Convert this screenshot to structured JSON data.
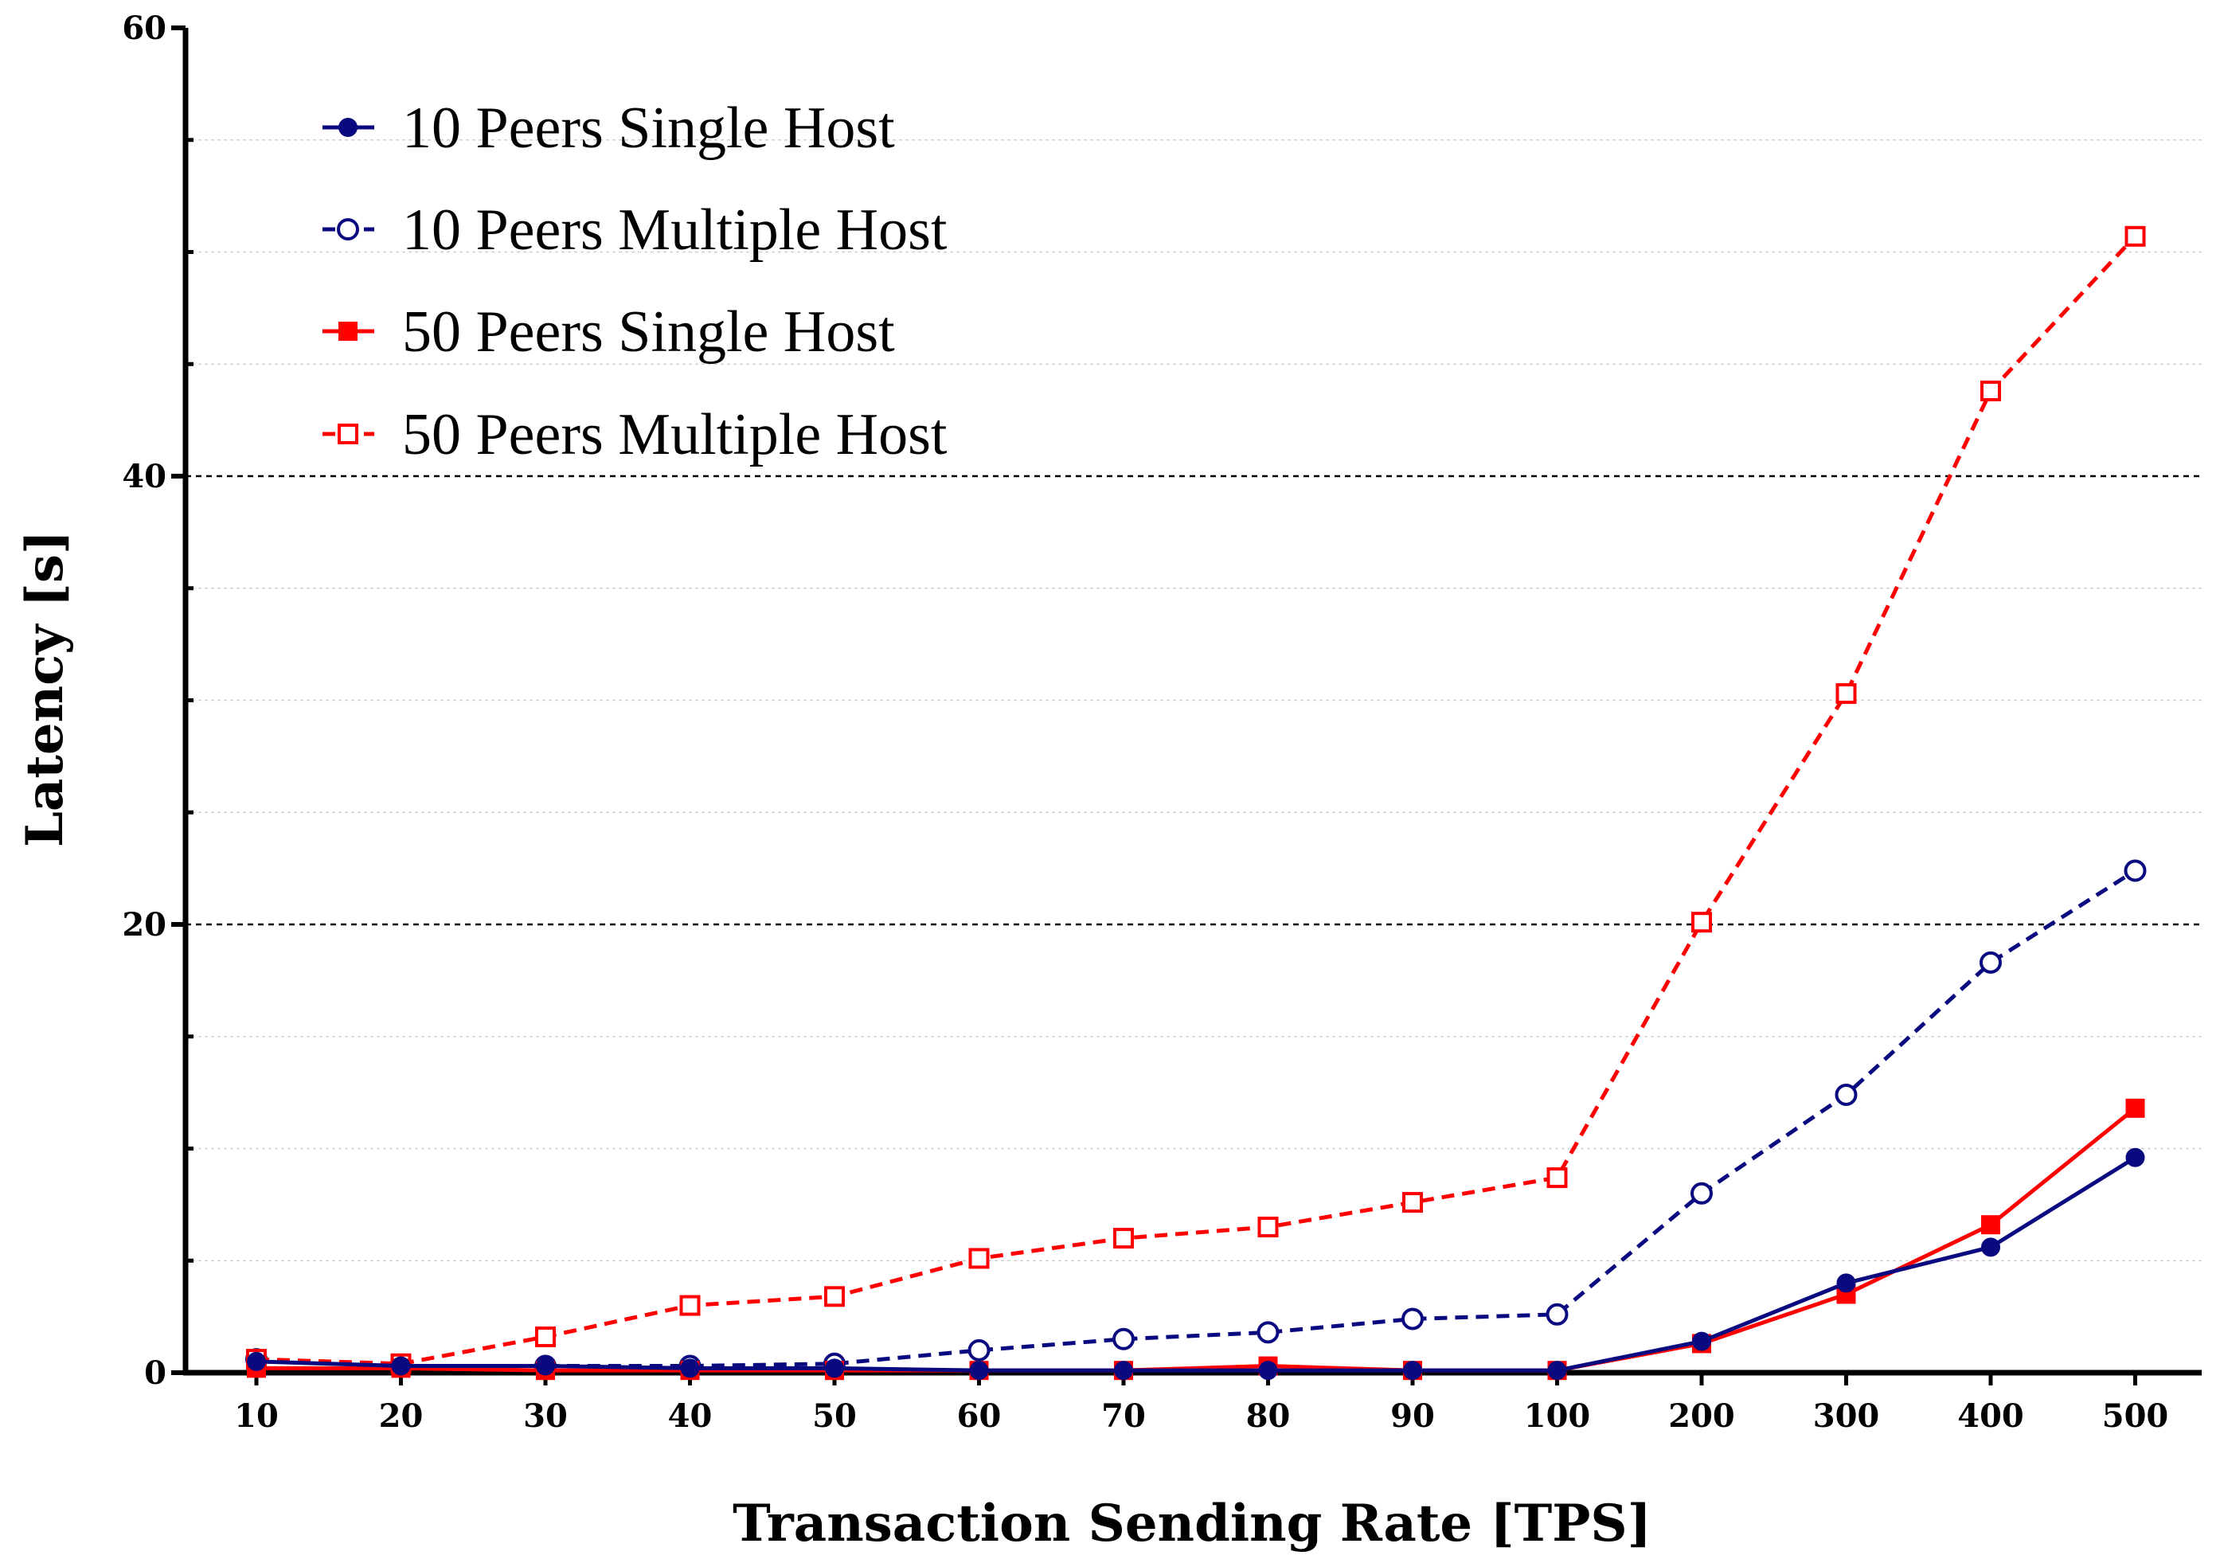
{
  "chart_data": {
    "type": "line",
    "title": "",
    "xlabel": "Transaction Sending Rate [TPS]",
    "ylabel": "Latency [s]",
    "categories": [
      "10",
      "20",
      "30",
      "40",
      "50",
      "60",
      "70",
      "80",
      "90",
      "100",
      "200",
      "300",
      "400",
      "500"
    ],
    "ylim": [
      0,
      60
    ],
    "yticks": [
      0,
      20,
      40,
      60
    ],
    "grid": {
      "major": [
        20,
        40
      ],
      "minor": [
        5,
        10,
        15,
        25,
        30,
        35,
        45,
        50,
        55
      ]
    },
    "legend_position": "top-left",
    "series": [
      {
        "name": "10 Peers Single Host",
        "color": "#0a0a80",
        "dash": "solid",
        "marker": "circle",
        "filled": true,
        "values": [
          0.5,
          0.3,
          0.3,
          0.2,
          0.2,
          0.1,
          0.1,
          0.1,
          0.1,
          0.1,
          1.4,
          4.0,
          5.6,
          9.6
        ]
      },
      {
        "name": "10 Peers Multiple Host",
        "color": "#0a0a80",
        "dash": "dashed",
        "marker": "circle",
        "filled": false,
        "values": [
          0.6,
          0.3,
          0.3,
          0.3,
          0.4,
          1.0,
          1.5,
          1.8,
          2.4,
          2.6,
          8.0,
          12.4,
          18.3,
          22.4
        ]
      },
      {
        "name": "50 Peers Single Host",
        "color": "#ff0000",
        "dash": "solid",
        "marker": "square",
        "filled": true,
        "values": [
          0.2,
          0.2,
          0.1,
          0.1,
          0.1,
          0.1,
          0.1,
          0.3,
          0.1,
          0.1,
          1.3,
          3.5,
          6.6,
          11.8
        ]
      },
      {
        "name": "50 Peers Multiple Host",
        "color": "#ff0000",
        "dash": "dashed",
        "marker": "square",
        "filled": false,
        "values": [
          0.6,
          0.4,
          1.6,
          3.0,
          3.4,
          5.1,
          6.0,
          6.5,
          7.6,
          8.7,
          20.1,
          30.3,
          43.8,
          50.7
        ]
      }
    ]
  }
}
